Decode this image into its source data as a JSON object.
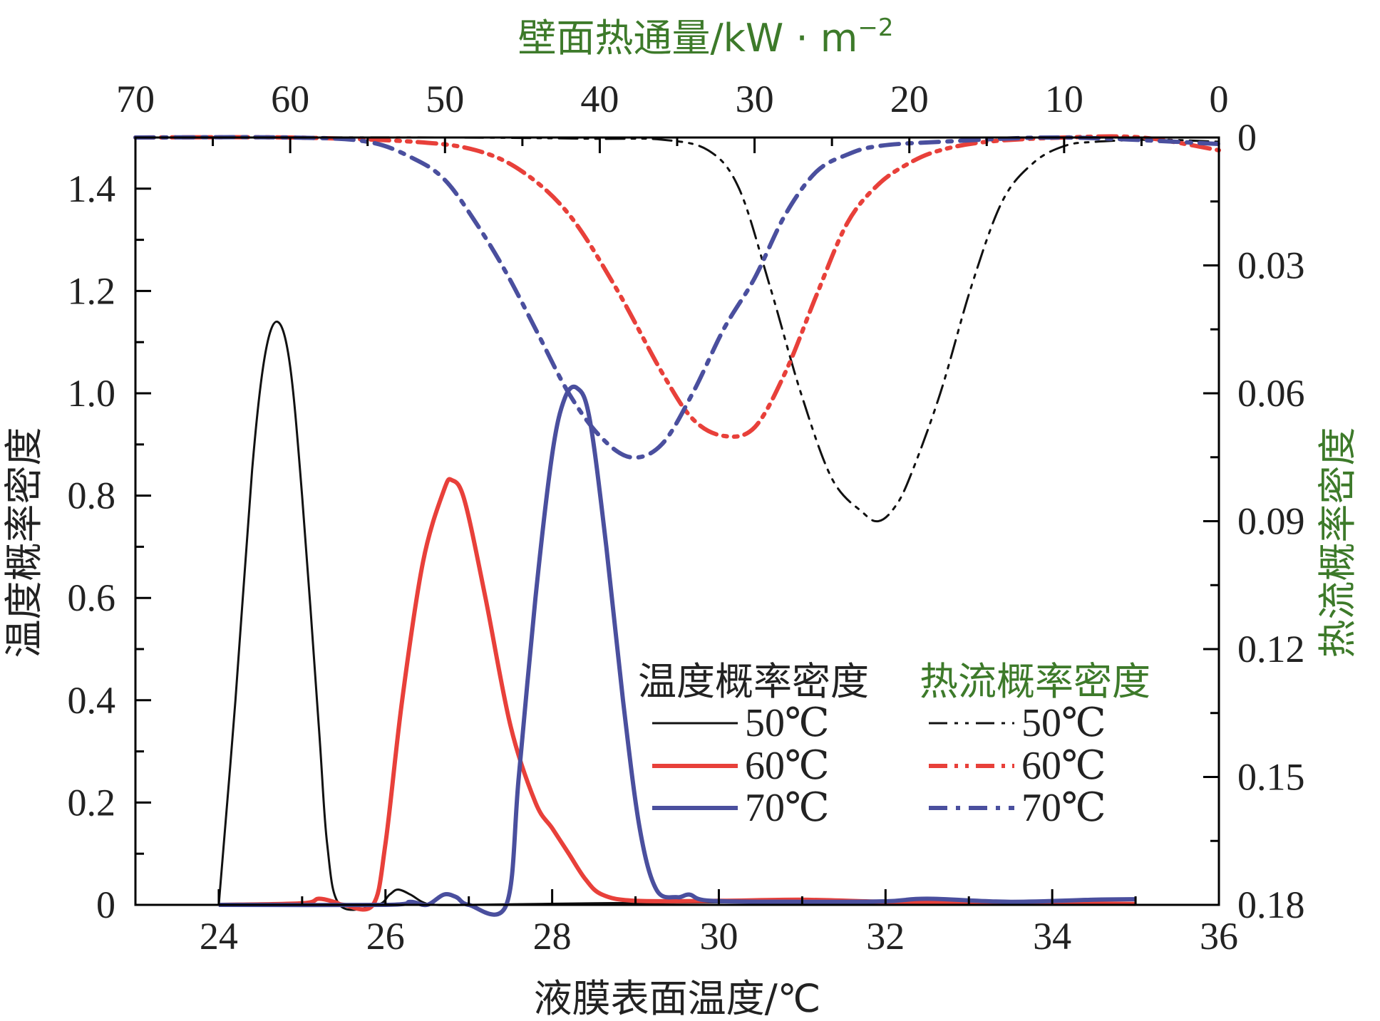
{
  "chart_data": {
    "type": "line",
    "xlabel": "液膜表面温度/℃",
    "ylabel_left": "温度概率密度",
    "ylabel_right": "热流概率密度",
    "xlabel_top": "壁面热通量/kW · m",
    "xlabel_top_sup": "−2",
    "x_bottom": {
      "lim": [
        23,
        36
      ],
      "ticks": [
        24,
        26,
        28,
        30,
        32,
        34,
        36
      ],
      "tick_labels": [
        "24",
        "26",
        "28",
        "30",
        "32",
        "34",
        "36"
      ]
    },
    "y_left": {
      "lim": [
        0,
        1.5
      ],
      "ticks": [
        0,
        0.2,
        0.4,
        0.6,
        0.8,
        1.0,
        1.2,
        1.4
      ],
      "tick_labels": [
        "0",
        "0.2",
        "0.4",
        "0.6",
        "0.8",
        "1.0",
        "1.2",
        "1.4"
      ]
    },
    "x_top": {
      "lim": [
        70,
        0
      ],
      "ticks": [
        70,
        60,
        50,
        40,
        30,
        20,
        10,
        0
      ],
      "tick_labels": [
        "70",
        "60",
        "50",
        "40",
        "30",
        "20",
        "10",
        "0"
      ]
    },
    "y_right": {
      "lim": [
        0,
        0.18
      ],
      "inverted": true,
      "ticks": [
        0,
        0.03,
        0.06,
        0.09,
        0.12,
        0.15,
        0.18
      ],
      "tick_labels": [
        "0",
        "0.03",
        "0.06",
        "0.09",
        "0.12",
        "0.15",
        "0.18"
      ]
    },
    "legend": {
      "header_left": "温度概率密度",
      "header_right": "热流概率密度",
      "placement": "lower-right"
    },
    "colors": {
      "s50": "#111111",
      "s60": "#e8403a",
      "s70": "#4a4f9e",
      "green_text": "#3d7a2a"
    },
    "temperature_series": [
      {
        "name": "50℃",
        "color": "#111111",
        "points": [
          [
            24.0,
            0
          ],
          [
            24.2,
            0.4
          ],
          [
            24.4,
            0.85
          ],
          [
            24.55,
            1.07
          ],
          [
            24.7,
            1.14
          ],
          [
            24.85,
            1.06
          ],
          [
            25.0,
            0.8
          ],
          [
            25.2,
            0.35
          ],
          [
            25.3,
            0.12
          ],
          [
            25.45,
            0
          ],
          [
            25.9,
            0
          ],
          [
            26.05,
            0.02
          ],
          [
            26.15,
            0.03
          ],
          [
            26.3,
            0.02
          ],
          [
            26.45,
            0.005
          ],
          [
            26.6,
            0
          ],
          [
            27.0,
            0
          ],
          [
            28.5,
            0.003
          ],
          [
            30.0,
            0.005
          ],
          [
            32.0,
            0.004
          ],
          [
            34.0,
            0.003
          ],
          [
            35.0,
            0.003
          ]
        ]
      },
      {
        "name": "60℃",
        "color": "#e8403a",
        "points": [
          [
            24.0,
            0
          ],
          [
            25.0,
            0.003
          ],
          [
            25.2,
            0.012
          ],
          [
            25.4,
            0.005
          ],
          [
            25.5,
            0
          ],
          [
            25.85,
            0
          ],
          [
            26.0,
            0.12
          ],
          [
            26.2,
            0.4
          ],
          [
            26.45,
            0.67
          ],
          [
            26.7,
            0.81
          ],
          [
            26.8,
            0.83
          ],
          [
            26.95,
            0.79
          ],
          [
            27.2,
            0.6
          ],
          [
            27.5,
            0.35
          ],
          [
            27.8,
            0.2
          ],
          [
            28.0,
            0.15
          ],
          [
            28.2,
            0.1
          ],
          [
            28.4,
            0.05
          ],
          [
            28.6,
            0.02
          ],
          [
            29.0,
            0.008
          ],
          [
            30.0,
            0.008
          ],
          [
            31.0,
            0.01
          ],
          [
            32.0,
            0.006
          ],
          [
            33.0,
            0.004
          ],
          [
            34.0,
            0.003
          ],
          [
            35.0,
            0.002
          ]
        ]
      },
      {
        "name": "70℃",
        "color": "#4a4f9e",
        "points": [
          [
            24.0,
            0
          ],
          [
            26.0,
            0
          ],
          [
            26.3,
            0.006
          ],
          [
            26.5,
            0.0
          ],
          [
            26.7,
            0.02
          ],
          [
            26.85,
            0.015
          ],
          [
            27.0,
            0
          ],
          [
            27.45,
            0
          ],
          [
            27.6,
            0.25
          ],
          [
            27.8,
            0.6
          ],
          [
            28.0,
            0.88
          ],
          [
            28.15,
            0.99
          ],
          [
            28.3,
            1.01
          ],
          [
            28.45,
            0.95
          ],
          [
            28.65,
            0.7
          ],
          [
            28.85,
            0.4
          ],
          [
            29.05,
            0.15
          ],
          [
            29.25,
            0.03
          ],
          [
            29.5,
            0.015
          ],
          [
            29.65,
            0.02
          ],
          [
            29.9,
            0.008
          ],
          [
            31.0,
            0.006
          ],
          [
            32.0,
            0.007
          ],
          [
            32.5,
            0.012
          ],
          [
            33.5,
            0.006
          ],
          [
            34.5,
            0.01
          ],
          [
            35.0,
            0.011
          ]
        ]
      }
    ],
    "heat_flux_series": [
      {
        "name": "50℃",
        "color": "#111111",
        "dash": "dash-dot-dot",
        "points": [
          [
            70,
            0
          ],
          [
            50,
            0
          ],
          [
            40,
            0.0003
          ],
          [
            36,
            0.0005
          ],
          [
            33,
            0.003
          ],
          [
            31,
            0.012
          ],
          [
            29,
            0.035
          ],
          [
            27,
            0.06
          ],
          [
            25,
            0.08
          ],
          [
            23,
            0.088
          ],
          [
            22,
            0.09
          ],
          [
            21,
            0.087
          ],
          [
            20,
            0.08
          ],
          [
            18,
            0.06
          ],
          [
            16,
            0.035
          ],
          [
            14,
            0.015
          ],
          [
            12,
            0.006
          ],
          [
            10,
            0.002
          ],
          [
            8,
            0.001
          ],
          [
            4,
            0.0005
          ],
          [
            0,
            0.001
          ]
        ]
      },
      {
        "name": "60℃",
        "color": "#e8403a",
        "dash": "dash-dot-dot",
        "points": [
          [
            70,
            0
          ],
          [
            60,
            0
          ],
          [
            52,
            0.001
          ],
          [
            48,
            0.003
          ],
          [
            45,
            0.008
          ],
          [
            42,
            0.018
          ],
          [
            39,
            0.035
          ],
          [
            36,
            0.055
          ],
          [
            34,
            0.066
          ],
          [
            32,
            0.07
          ],
          [
            30,
            0.068
          ],
          [
            28,
            0.055
          ],
          [
            26,
            0.037
          ],
          [
            24,
            0.02
          ],
          [
            22,
            0.011
          ],
          [
            20,
            0.006
          ],
          [
            18,
            0.003
          ],
          [
            15,
            0.001
          ],
          [
            10,
            0.0
          ],
          [
            5,
            0.0
          ],
          [
            0,
            0.003
          ]
        ]
      },
      {
        "name": "70℃",
        "color": "#4a4f9e",
        "dash": "dash-dot",
        "points": [
          [
            70,
            0
          ],
          [
            60,
            0
          ],
          [
            55,
            0.001
          ],
          [
            52,
            0.005
          ],
          [
            50,
            0.01
          ],
          [
            48,
            0.02
          ],
          [
            46,
            0.032
          ],
          [
            44,
            0.046
          ],
          [
            42,
            0.06
          ],
          [
            40,
            0.07
          ],
          [
            38,
            0.075
          ],
          [
            36,
            0.072
          ],
          [
            34,
            0.06
          ],
          [
            32,
            0.045
          ],
          [
            30,
            0.033
          ],
          [
            28,
            0.018
          ],
          [
            26,
            0.008
          ],
          [
            24,
            0.004
          ],
          [
            22,
            0.002
          ],
          [
            18,
            0.001
          ],
          [
            10,
            0.0
          ],
          [
            0,
            0.0015
          ]
        ]
      }
    ]
  }
}
